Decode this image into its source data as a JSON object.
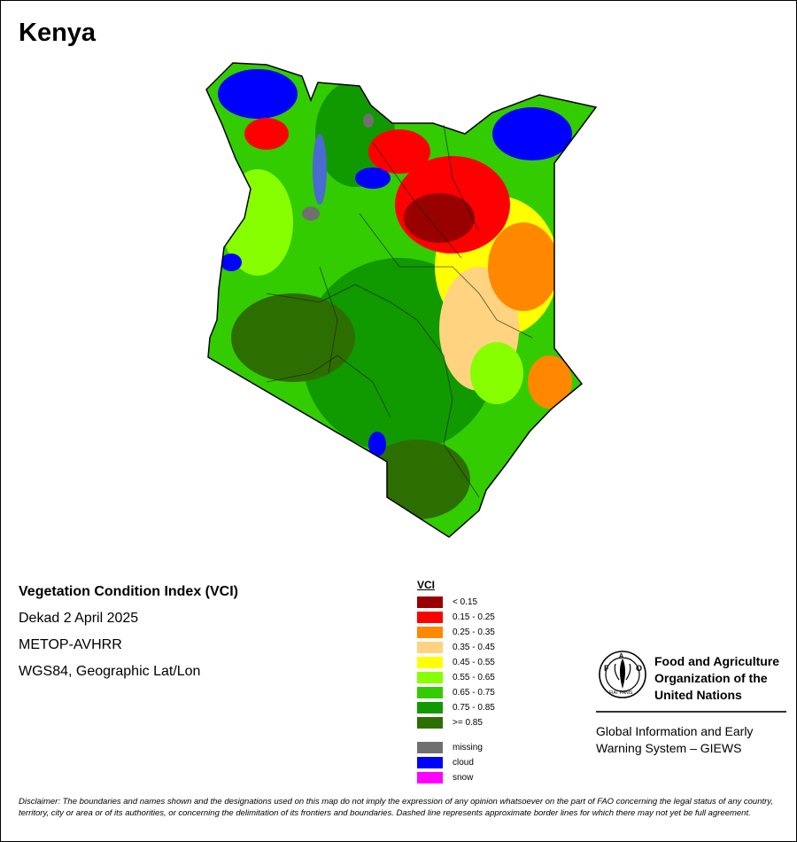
{
  "map": {
    "title": "Kenya",
    "product": "Vegetation Condition Index (VCI)",
    "dekad": "Dekad 2 April 2025",
    "sensor": "METOP-AVHRR",
    "projection": "WGS84, Geographic Lat/Lon"
  },
  "legend": {
    "title": "VCI",
    "classes": [
      {
        "label": "< 0.15",
        "color": "#990000"
      },
      {
        "label": "0.15 - 0.25",
        "color": "#ff0000"
      },
      {
        "label": "0.25 - 0.35",
        "color": "#ff8800"
      },
      {
        "label": "0.35 - 0.45",
        "color": "#ffd37f"
      },
      {
        "label": "0.45 - 0.55",
        "color": "#ffff00"
      },
      {
        "label": "0.55 - 0.65",
        "color": "#88ff00"
      },
      {
        "label": "0.65 - 0.75",
        "color": "#33cc00"
      },
      {
        "label": "0.75 - 0.85",
        "color": "#119900"
      },
      {
        "label": ">= 0.85",
        "color": "#2d6e00"
      }
    ],
    "extra": [
      {
        "label": "missing",
        "color": "#707070"
      },
      {
        "label": "cloud",
        "color": "#0000ff"
      },
      {
        "label": "snow",
        "color": "#ff00ff"
      }
    ]
  },
  "organization": {
    "name": "Food and Agriculture Organization of the United Nations",
    "program": "Global Information and Early Warning System – GIEWS",
    "logo_text": "FAO",
    "logo_motto": "FIAT PANIS"
  },
  "disclaimer": "Disclaimer: The boundaries and names shown and the designations used on this map do not imply the expression of any opinion whatsoever on the part of FAO concerning the legal status of any country, territory, city or area or of its authorities, or concerning the delimitation of its frontiers and boundaries. Dashed line represents approximate border lines for which there may not yet be full agreement."
}
